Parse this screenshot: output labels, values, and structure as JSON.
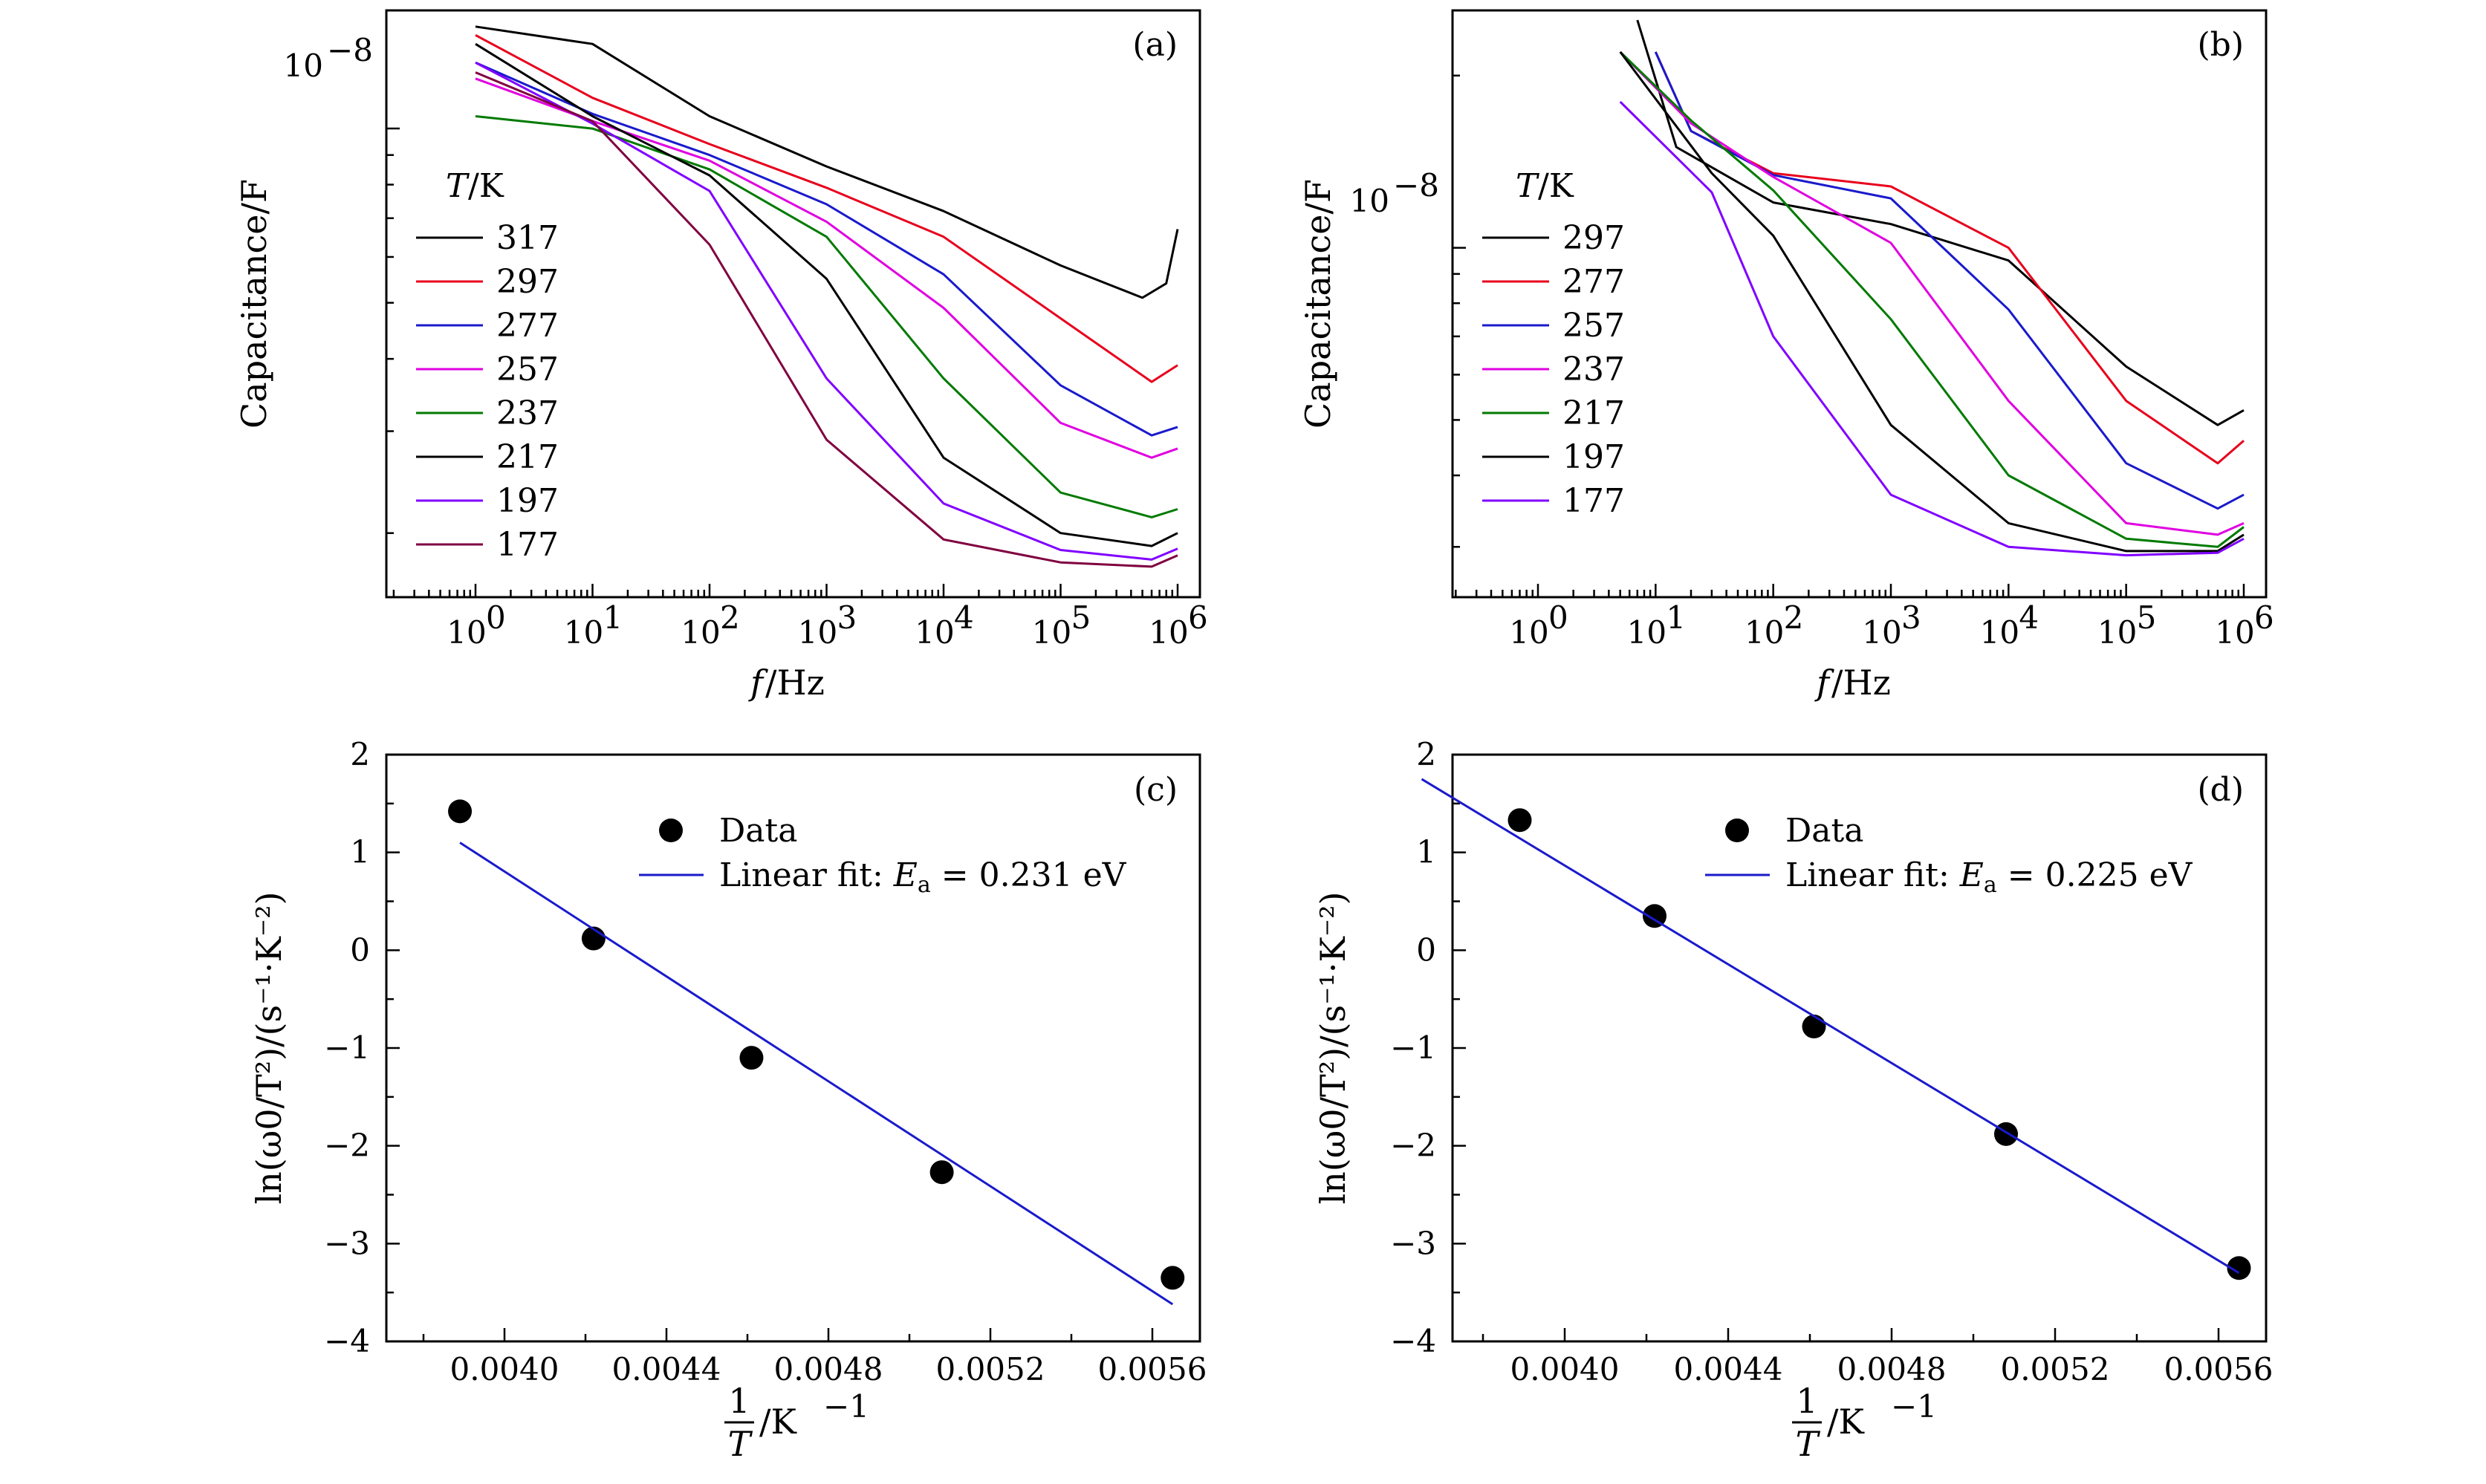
{
  "chart_data": [
    {
      "panel": "(a)",
      "type": "line",
      "xlabel": "f/Hz",
      "ylabel": "Capacitance/F",
      "x_scale": "log",
      "y_scale": "log",
      "x_ticks": [
        "10^0",
        "10^1",
        "10^2",
        "10^3",
        "10^4",
        "10^5",
        "10^6"
      ],
      "y_ticks": [
        "10^-8"
      ],
      "legend_title": "T/K",
      "legend_position": "left",
      "series": [
        {
          "name": "317",
          "color": "#000000",
          "points": [
            [
              1.0,
              15.0
            ],
            [
              10.0,
              14.0
            ],
            [
              100.0,
              10.5
            ],
            [
              1000.0,
              8.6
            ],
            [
              10000.0,
              7.2
            ],
            [
              100000.0,
              5.8
            ],
            [
              500000.0,
              5.1
            ],
            [
              800000.0,
              5.4
            ],
            [
              1000000.0,
              6.7
            ]
          ]
        },
        {
          "name": "297",
          "color": "#e8001c",
          "points": [
            [
              1.0,
              14.5
            ],
            [
              10.0,
              11.3
            ],
            [
              100.0,
              9.4
            ],
            [
              1000.0,
              7.9
            ],
            [
              10000.0,
              6.5
            ],
            [
              100000.0,
              4.7
            ],
            [
              600000.0,
              3.65
            ],
            [
              1000000.0,
              3.9
            ]
          ]
        },
        {
          "name": "277",
          "color": "#1a1acc",
          "points": [
            [
              1.0,
              13.0
            ],
            [
              10.0,
              10.6
            ],
            [
              100.0,
              9.0
            ],
            [
              1000.0,
              7.4
            ],
            [
              10000.0,
              5.6
            ],
            [
              100000.0,
              3.6
            ],
            [
              600000.0,
              2.95
            ],
            [
              1000000.0,
              3.05
            ]
          ]
        },
        {
          "name": "257",
          "color": "#e000e0",
          "points": [
            [
              1.0,
              12.2
            ],
            [
              10.0,
              10.3
            ],
            [
              100.0,
              8.8
            ],
            [
              1000.0,
              6.9
            ],
            [
              10000.0,
              4.9
            ],
            [
              100000.0,
              3.1
            ],
            [
              600000.0,
              2.7
            ],
            [
              1000000.0,
              2.8
            ]
          ]
        },
        {
          "name": "237",
          "color": "#007a00",
          "points": [
            [
              1.0,
              10.5
            ],
            [
              10.0,
              10.0
            ],
            [
              100.0,
              8.5
            ],
            [
              1000.0,
              6.5
            ],
            [
              10000.0,
              3.7
            ],
            [
              100000.0,
              2.35
            ],
            [
              600000.0,
              2.13
            ],
            [
              1000000.0,
              2.2
            ]
          ]
        },
        {
          "name": "217",
          "color": "#000000",
          "points": [
            [
              1.0,
              14.0
            ],
            [
              10.0,
              10.5
            ],
            [
              100.0,
              8.3
            ],
            [
              1000.0,
              5.5
            ],
            [
              10000.0,
              2.7
            ],
            [
              100000.0,
              2.0
            ],
            [
              600000.0,
              1.9
            ],
            [
              1000000.0,
              2.0
            ]
          ]
        },
        {
          "name": "197",
          "color": "#8000ff",
          "points": [
            [
              1.0,
              13.0
            ],
            [
              10.0,
              10.2
            ],
            [
              100.0,
              7.8
            ],
            [
              1000.0,
              3.7
            ],
            [
              10000.0,
              2.25
            ],
            [
              100000.0,
              1.87
            ],
            [
              600000.0,
              1.8
            ],
            [
              1000000.0,
              1.88
            ]
          ]
        },
        {
          "name": "177",
          "color": "#800040",
          "points": [
            [
              1.0,
              12.5
            ],
            [
              10.0,
              10.3
            ],
            [
              100.0,
              6.3
            ],
            [
              1000.0,
              2.9
            ],
            [
              10000.0,
              1.95
            ],
            [
              100000.0,
              1.78
            ],
            [
              600000.0,
              1.75
            ],
            [
              1000000.0,
              1.83
            ]
          ]
        }
      ]
    },
    {
      "panel": "(b)",
      "type": "line",
      "xlabel": "f/Hz",
      "ylabel": "Capacitance/F",
      "x_scale": "log",
      "y_scale": "log",
      "x_ticks": [
        "10^0",
        "10^1",
        "10^2",
        "10^3",
        "10^4",
        "10^5",
        "10^6"
      ],
      "y_ticks": [
        "10^-8"
      ],
      "legend_title": "T/K",
      "legend_position": "left",
      "series": [
        {
          "name": "297",
          "color": "#000000",
          "points": [
            [
              7.0,
              25.0
            ],
            [
              15.0,
              15.0
            ],
            [
              100.0,
              12.0
            ],
            [
              1000.0,
              11.0
            ],
            [
              10000.0,
              9.5
            ],
            [
              100000.0,
              6.2
            ],
            [
              600000.0,
              4.9
            ],
            [
              1000000.0,
              5.2
            ]
          ]
        },
        {
          "name": "277",
          "color": "#e8001c",
          "points": [
            [
              10.0,
              22.0
            ],
            [
              20.0,
              16.0
            ],
            [
              100.0,
              13.5
            ],
            [
              1000.0,
              12.8
            ],
            [
              10000.0,
              10.0
            ],
            [
              100000.0,
              5.4
            ],
            [
              600000.0,
              4.2
            ],
            [
              1000000.0,
              4.6
            ]
          ]
        },
        {
          "name": "257",
          "color": "#1a1acc",
          "points": [
            [
              10.0,
              22.0
            ],
            [
              20.0,
              16.0
            ],
            [
              100.0,
              13.4
            ],
            [
              1000.0,
              12.2
            ],
            [
              10000.0,
              7.8
            ],
            [
              100000.0,
              4.2
            ],
            [
              600000.0,
              3.5
            ],
            [
              1000000.0,
              3.7
            ]
          ]
        },
        {
          "name": "237",
          "color": "#e000e0",
          "points": [
            [
              5.0,
              22.0
            ],
            [
              20.0,
              16.5
            ],
            [
              100.0,
              13.3
            ],
            [
              1000.0,
              10.2
            ],
            [
              10000.0,
              5.4
            ],
            [
              100000.0,
              3.3
            ],
            [
              600000.0,
              3.15
            ],
            [
              1000000.0,
              3.3
            ]
          ]
        },
        {
          "name": "217",
          "color": "#007a00",
          "points": [
            [
              5.0,
              22.0
            ],
            [
              20.0,
              16.7
            ],
            [
              100.0,
              12.6
            ],
            [
              1000.0,
              7.5
            ],
            [
              10000.0,
              4.0
            ],
            [
              100000.0,
              3.1
            ],
            [
              600000.0,
              3.0
            ],
            [
              1000000.0,
              3.25
            ]
          ]
        },
        {
          "name": "197",
          "color": "#000000",
          "points": [
            [
              5.0,
              22.0
            ],
            [
              30.0,
              13.5
            ],
            [
              100.0,
              10.5
            ],
            [
              1000.0,
              4.9
            ],
            [
              10000.0,
              3.3
            ],
            [
              100000.0,
              2.95
            ],
            [
              600000.0,
              2.95
            ],
            [
              1000000.0,
              3.15
            ]
          ]
        },
        {
          "name": "177",
          "color": "#8000ff",
          "points": [
            [
              5.0,
              18.0
            ],
            [
              30.0,
              12.5
            ],
            [
              100.0,
              7.0
            ],
            [
              1000.0,
              3.7
            ],
            [
              10000.0,
              3.0
            ],
            [
              100000.0,
              2.9
            ],
            [
              600000.0,
              2.93
            ],
            [
              1000000.0,
              3.1
            ]
          ]
        }
      ]
    },
    {
      "panel": "(c)",
      "type": "scatter",
      "xlabel": "1/T /K^-1",
      "ylabel": "ln(ω0/T^2)/(s^-1·K^-2)",
      "xlim": [
        0.00365,
        0.0058
      ],
      "ylim": [
        -4,
        2
      ],
      "x_ticks": [
        "0.0040",
        "0.0044",
        "0.0048",
        "0.0052",
        "0.0056"
      ],
      "y_ticks": [
        "2",
        "1",
        "0",
        "−1",
        "−2",
        "−3",
        "−4"
      ],
      "legend_position": "top-center",
      "series": [
        {
          "name": "Data",
          "x": [
            0.00389,
            0.00422,
            0.00461,
            0.00508,
            0.00565
          ],
          "y": [
            1.42,
            0.12,
            -1.1,
            -2.27,
            -3.35
          ]
        },
        {
          "name": "Linear fit: Ea = 0.231 eV",
          "fit": true,
          "x": [
            0.00389,
            0.00565
          ],
          "y": [
            1.1,
            -3.62
          ]
        }
      ]
    },
    {
      "panel": "(d)",
      "type": "scatter",
      "xlabel": "1/T /K^-1",
      "ylabel": "ln(ω0/T^2)/(s^-1·K^-2)",
      "xlim": [
        0.00365,
        0.0058
      ],
      "ylim": [
        -4,
        2
      ],
      "x_ticks": [
        "0.0040",
        "0.0044",
        "0.0048",
        "0.0052",
        "0.0056"
      ],
      "y_ticks": [
        "2",
        "1",
        "0",
        "−1",
        "−2",
        "−3",
        "−4"
      ],
      "legend_position": "top-center",
      "series": [
        {
          "name": "Data",
          "x": [
            0.00389,
            0.00422,
            0.00461,
            0.00508,
            0.00565
          ],
          "y": [
            1.33,
            0.35,
            -0.78,
            -1.88,
            -3.25
          ]
        },
        {
          "name": "Linear fit: Ea = 0.225 eV",
          "fit": true,
          "x": [
            0.00365,
            0.00565
          ],
          "y": [
            1.75,
            -3.3
          ]
        }
      ]
    }
  ],
  "labels": {
    "a": "(a)",
    "b": "(b)",
    "c": "(c)",
    "d": "(d)",
    "legend_title_T": "T",
    "legend_title_unit": "/K",
    "cap_ylabel": "Capacitance/F",
    "f_xlabel_f": "f",
    "f_xlabel_unit": "/Hz",
    "arr_ylabel": "ln(ω0/T²)/(s⁻¹·K⁻²)",
    "inv_T_num": "1",
    "inv_T_den": "T",
    "inv_T_unit": "/K",
    "inv_T_exp": "−1",
    "data_label": "Data",
    "fit_prefix": "Linear fit: ",
    "fit_E": "E",
    "fit_sub": "a",
    "fit_c": " = 0.231 eV",
    "fit_d": " = 0.225 eV",
    "pow_base": "10",
    "pow_exps": [
      "0",
      "1",
      "2",
      "3",
      "4",
      "5",
      "6"
    ],
    "pow_neg8": "−8"
  }
}
